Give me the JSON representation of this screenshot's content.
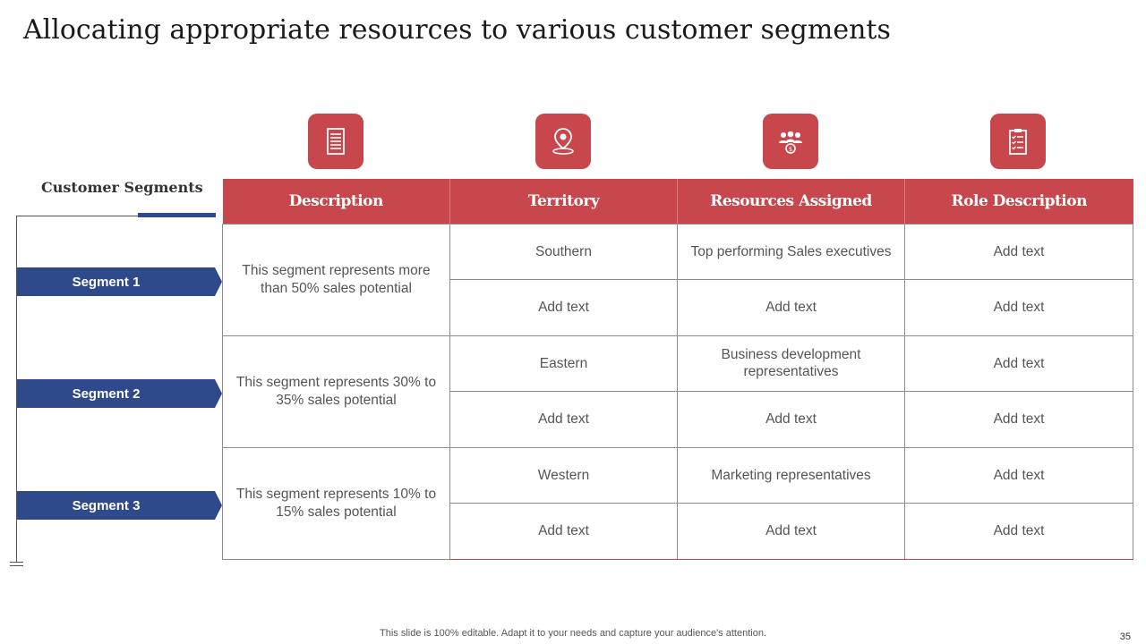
{
  "title": "Allocating appropriate resources to various customer segments",
  "icons": [
    "document-icon",
    "location-pin-icon",
    "team-money-icon",
    "clipboard-icon"
  ],
  "accent_color": "#c8474c",
  "segment_color": "#2f4a8a",
  "segments_heading": "Customer Segments",
  "segments": [
    "Segment 1",
    "Segment 2",
    "Segment 3"
  ],
  "table": {
    "headers": [
      "Description",
      "Territory",
      "Resources Assigned",
      "Role Description"
    ],
    "groups": [
      {
        "description": "This segment represents more than 50% sales potential",
        "rows": [
          {
            "territory": "Southern",
            "resources": "Top performing Sales executives",
            "role": "Add text"
          },
          {
            "territory": "Add text",
            "resources": "Add text",
            "role": "Add text"
          }
        ]
      },
      {
        "description": "This segment represents 30% to 35% sales potential",
        "rows": [
          {
            "territory": "Eastern",
            "resources": "Business development representatives",
            "role": "Add text"
          },
          {
            "territory": "Add text",
            "resources": "Add text",
            "role": "Add text"
          }
        ]
      },
      {
        "description": "This segment represents 10% to 15% sales potential",
        "rows": [
          {
            "territory": "Western",
            "resources": "Marketing representatives",
            "role": "Add text"
          },
          {
            "territory": "Add text",
            "resources": "Add text",
            "role": "Add text"
          }
        ]
      }
    ]
  },
  "footer": "This slide is 100% editable. Adapt it to your needs and capture your audience's attention.",
  "page_number": "35"
}
